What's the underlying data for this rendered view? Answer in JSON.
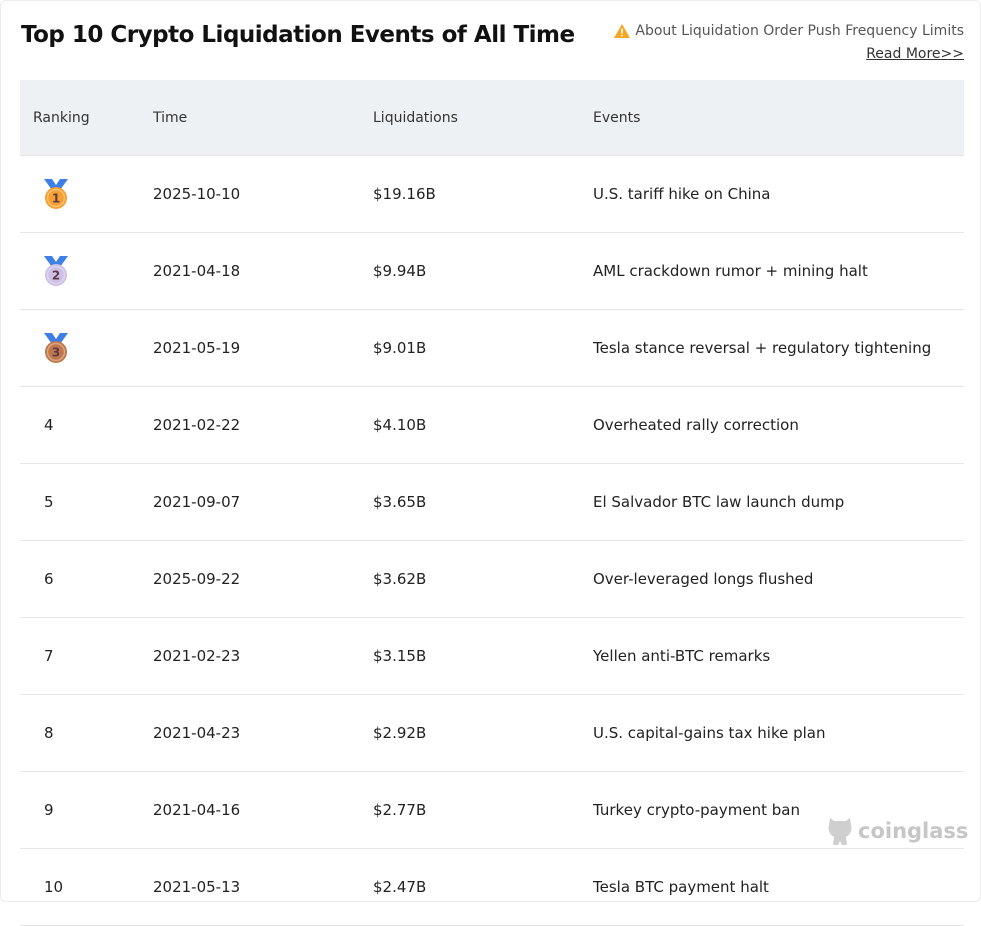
{
  "header": {
    "title": "Top 10 Crypto Liquidation Events of All Time",
    "notice": "About Liquidation Order Push Frequency Limits",
    "read_more": "Read More>>"
  },
  "columns": [
    "Ranking",
    "Time",
    "Liquidations",
    "Events"
  ],
  "rows": [
    {
      "rank": "1",
      "time": "2025-10-10",
      "liq": "$19.16B",
      "event": "U.S. tariff hike on China",
      "medal": "#f5a030"
    },
    {
      "rank": "2",
      "time": "2021-04-18",
      "liq": "$9.94B",
      "event": "AML crackdown rumor + mining halt",
      "medal": "#cdbfe6"
    },
    {
      "rank": "3",
      "time": "2021-05-19",
      "liq": "$9.01B",
      "event": "Tesla stance reversal + regulatory tightening",
      "medal": "#c0774a"
    },
    {
      "rank": "4",
      "time": "2021-02-22",
      "liq": "$4.10B",
      "event": "Overheated rally correction"
    },
    {
      "rank": "5",
      "time": "2021-09-07",
      "liq": "$3.65B",
      "event": "El Salvador BTC law launch dump"
    },
    {
      "rank": "6",
      "time": "2025-09-22",
      "liq": "$3.62B",
      "event": "Over-leveraged longs flushed"
    },
    {
      "rank": "7",
      "time": "2021-02-23",
      "liq": "$3.15B",
      "event": "Yellen anti-BTC remarks"
    },
    {
      "rank": "8",
      "time": "2021-04-23",
      "liq": "$2.92B",
      "event": "U.S. capital-gains tax hike plan"
    },
    {
      "rank": "9",
      "time": "2021-04-16",
      "liq": "$2.77B",
      "event": "Turkey crypto-payment ban"
    },
    {
      "rank": "10",
      "time": "2021-05-13",
      "liq": "$2.47B",
      "event": "Tesla BTC payment halt"
    }
  ],
  "watermark": "coinglass"
}
